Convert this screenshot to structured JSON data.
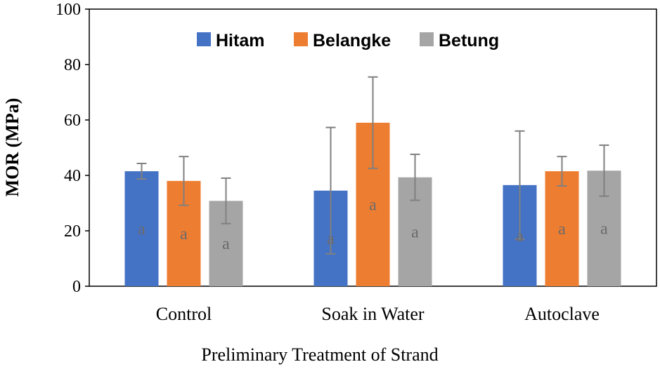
{
  "chart_data": {
    "type": "bar",
    "title": "",
    "xlabel": "Preliminary Treatment of Strand",
    "ylabel": "MOR (MPa)",
    "ylim": [
      0,
      100
    ],
    "yticks": [
      0,
      20,
      40,
      60,
      80,
      100
    ],
    "grid": false,
    "legend_position": "top-center",
    "categories": [
      "Control",
      "Soak in Water",
      "Autoclave"
    ],
    "series": [
      {
        "name": "Hitam",
        "color": "#4472C4",
        "values": [
          41.5,
          34.5,
          36.5
        ],
        "error": [
          2.8,
          22.8,
          19.5
        ],
        "labels": [
          "a",
          "a",
          "a"
        ]
      },
      {
        "name": "Belangke",
        "color": "#ED7D31",
        "values": [
          38.0,
          59.0,
          41.5
        ],
        "error": [
          8.8,
          16.5,
          5.3
        ],
        "labels": [
          "a",
          "a",
          "a"
        ]
      },
      {
        "name": "Betung",
        "color": "#A5A5A5",
        "values": [
          30.8,
          39.3,
          41.7
        ],
        "error": [
          8.2,
          8.3,
          9.2
        ],
        "labels": [
          "a",
          "a",
          "a"
        ]
      }
    ]
  }
}
